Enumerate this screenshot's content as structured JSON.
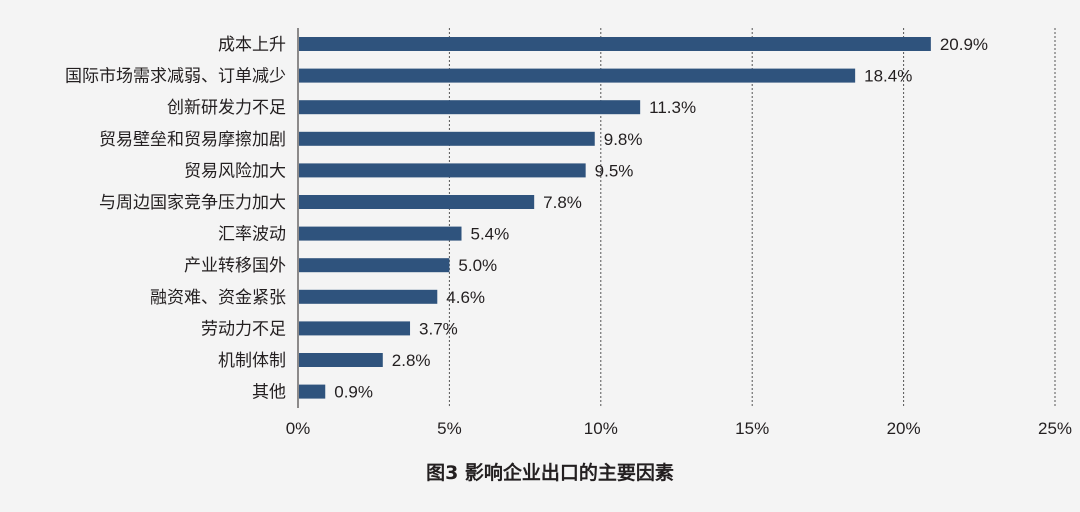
{
  "chart_data": {
    "type": "bar",
    "orientation": "horizontal",
    "title": "图3 影响企业出口的主要因素",
    "xlabel": "",
    "ylabel": "",
    "xlim": [
      0,
      25
    ],
    "ticks": [
      0,
      5,
      10,
      15,
      20,
      25
    ],
    "tick_labels": [
      "0%",
      "5%",
      "10%",
      "15%",
      "20%",
      "25%"
    ],
    "grid": "vertical dotted",
    "categories": [
      "成本上升",
      "国际市场需求减弱、订单减少",
      "创新研发力不足",
      "贸易壁垒和贸易摩擦加剧",
      "贸易风险加大",
      "与周边国家竞争压力加大",
      "汇率波动",
      "产业转移国外",
      "融资难、资金紧张",
      "劳动力不足",
      "机制体制",
      "其他"
    ],
    "values": [
      20.9,
      18.4,
      11.3,
      9.8,
      9.5,
      7.8,
      5.4,
      5.0,
      4.6,
      3.7,
      2.8,
      0.9
    ],
    "value_labels": [
      "20.9%",
      "18.4%",
      "11.3%",
      "9.8%",
      "9.5%",
      "7.8%",
      "5.4%",
      "5.0%",
      "4.6%",
      "3.7%",
      "2.8%",
      "0.9%"
    ],
    "bar_color": "#2f537d",
    "text_color": "#231f20",
    "grid_color": "#555555"
  }
}
